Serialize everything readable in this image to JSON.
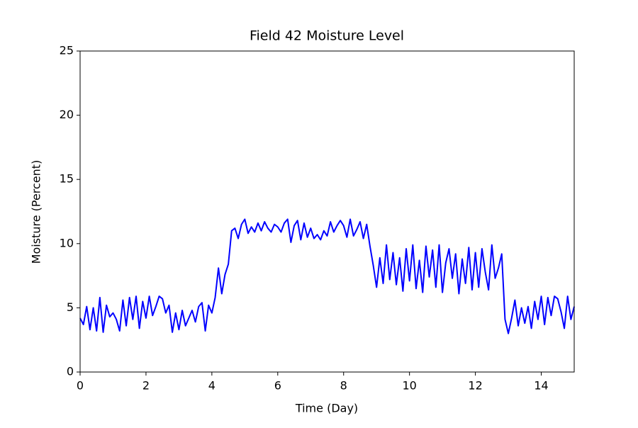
{
  "chart_data": {
    "type": "line",
    "title": "Field 42 Moisture Level",
    "x_label": "Time (Day)",
    "y_label": "Moisture (Percent)",
    "x": [
      0,
      0.1,
      0.2,
      0.3,
      0.4,
      0.5,
      0.6,
      0.7,
      0.8,
      0.9,
      1,
      1.1,
      1.2,
      1.3,
      1.4,
      1.5,
      1.6,
      1.7,
      1.8,
      1.9,
      2,
      2.1,
      2.2,
      2.3,
      2.4,
      2.5,
      2.6,
      2.7,
      2.8,
      2.9,
      3,
      3.1,
      3.2,
      3.3,
      3.4,
      3.5,
      3.6,
      3.7,
      3.8,
      3.9,
      4,
      4.1,
      4.2,
      4.3,
      4.4,
      4.5,
      4.6,
      4.7,
      4.8,
      4.9,
      5,
      5.1,
      5.2,
      5.3,
      5.4,
      5.5,
      5.6,
      5.7,
      5.8,
      5.9,
      6,
      6.1,
      6.2,
      6.3,
      6.4,
      6.5,
      6.6,
      6.7,
      6.8,
      6.9,
      7,
      7.1,
      7.2,
      7.3,
      7.4,
      7.5,
      7.6,
      7.7,
      7.8,
      7.9,
      8,
      8.1,
      8.2,
      8.3,
      8.4,
      8.5,
      8.6,
      8.7,
      8.8,
      8.9,
      9,
      9.1,
      9.2,
      9.3,
      9.4,
      9.5,
      9.6,
      9.7,
      9.8,
      9.9,
      10,
      10.1,
      10.2,
      10.3,
      10.4,
      10.5,
      10.6,
      10.7,
      10.8,
      10.9,
      11,
      11.1,
      11.2,
      11.3,
      11.4,
      11.5,
      11.6,
      11.7,
      11.8,
      11.9,
      12,
      12.1,
      12.2,
      12.3,
      12.4,
      12.5,
      12.6,
      12.7,
      12.8,
      12.9,
      13,
      13.1,
      13.2,
      13.3,
      13.4,
      13.5,
      13.6,
      13.7,
      13.8,
      13.9,
      14,
      14.1,
      14.2,
      14.3,
      14.4,
      14.5,
      14.6,
      14.7,
      14.8,
      14.9,
      15
    ],
    "series": [
      {
        "name": "Moisture",
        "color": "#0000ff",
        "values": [
          4.2,
          3.7,
          5.1,
          3.3,
          5.0,
          3.2,
          5.8,
          3.1,
          5.2,
          4.3,
          4.6,
          4.1,
          3.2,
          5.6,
          3.6,
          5.8,
          4.1,
          5.9,
          3.4,
          5.5,
          4.2,
          5.9,
          4.4,
          5.1,
          5.9,
          5.7,
          4.6,
          5.2,
          3.1,
          4.6,
          3.3,
          4.8,
          3.6,
          4.2,
          4.8,
          3.9,
          5.1,
          5.4,
          3.2,
          5.2,
          4.6,
          5.8,
          8.1,
          6.1,
          7.6,
          8.4,
          11.0,
          11.2,
          10.4,
          11.5,
          11.9,
          10.8,
          11.3,
          10.9,
          11.6,
          11.0,
          11.7,
          11.2,
          10.9,
          11.5,
          11.3,
          10.9,
          11.6,
          11.9,
          10.1,
          11.4,
          11.8,
          10.3,
          11.6,
          10.5,
          11.2,
          10.4,
          10.7,
          10.3,
          11.0,
          10.6,
          11.7,
          10.9,
          11.4,
          11.8,
          11.4,
          10.5,
          11.9,
          10.6,
          11.1,
          11.7,
          10.4,
          11.5,
          9.8,
          8.3,
          6.6,
          8.9,
          6.9,
          9.9,
          7.2,
          9.3,
          6.8,
          8.9,
          6.3,
          9.6,
          7.1,
          9.9,
          6.5,
          8.7,
          6.2,
          9.8,
          7.4,
          9.5,
          6.6,
          9.9,
          6.2,
          8.5,
          9.6,
          7.3,
          9.2,
          6.1,
          8.8,
          6.9,
          9.7,
          6.4,
          9.3,
          6.6,
          9.6,
          7.8,
          6.4,
          9.9,
          7.3,
          8.1,
          9.2,
          4.1,
          3.0,
          4.2,
          5.6,
          3.6,
          5.0,
          3.8,
          5.1,
          3.4,
          5.5,
          4.1,
          5.9,
          3.7,
          5.8,
          4.4,
          5.9,
          5.7,
          4.7,
          3.4,
          5.9,
          4.1,
          5.1
        ]
      }
    ],
    "xlim": [
      0,
      15
    ],
    "xticks": [
      0,
      2,
      4,
      6,
      8,
      10,
      12,
      14
    ],
    "ylim": [
      0,
      25
    ],
    "yticks": [
      0,
      5,
      10,
      15,
      20,
      25
    ],
    "grid": false
  }
}
